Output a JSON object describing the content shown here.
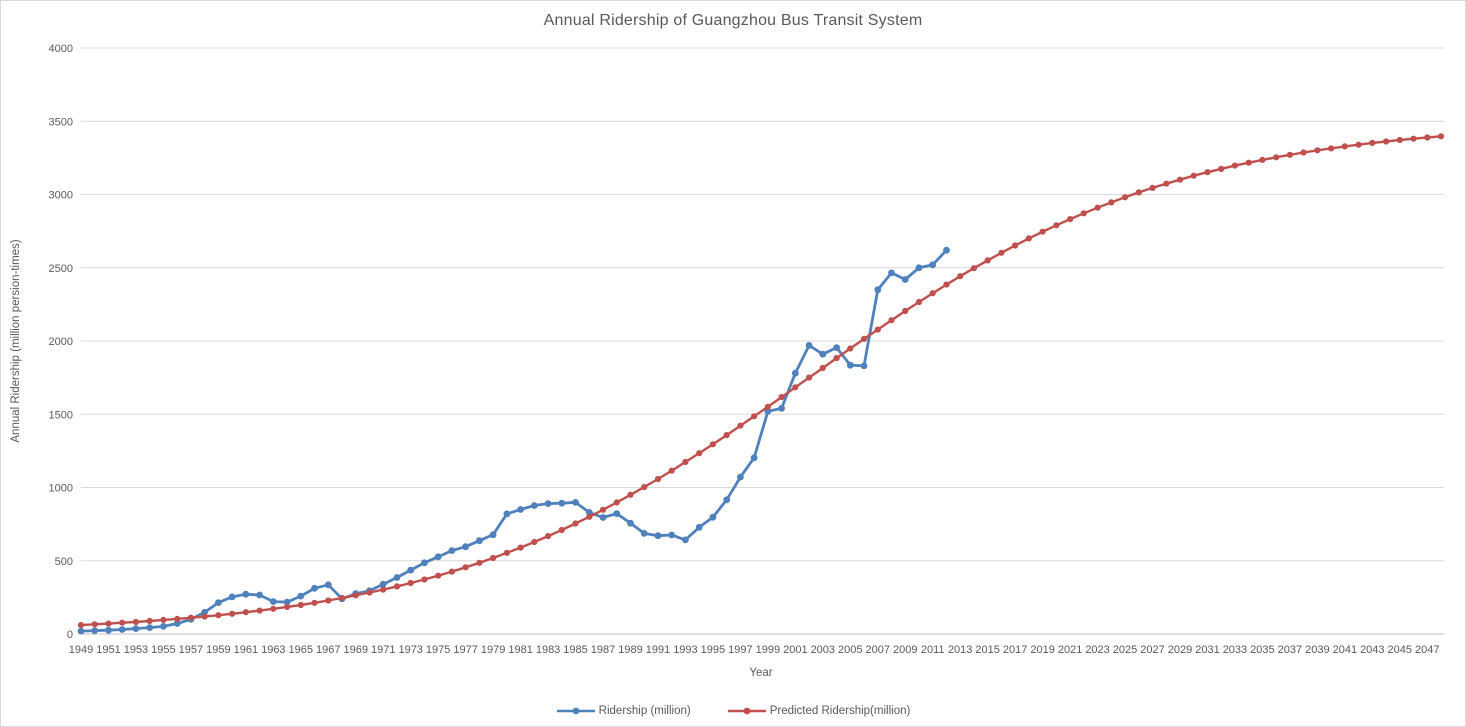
{
  "chart_data": {
    "type": "line",
    "title": "Annual Ridership of Guangzhou Bus Transit System",
    "xlabel": "Year",
    "ylabel": "Annual Ridership (million persion-times)",
    "ylim": [
      0,
      4000
    ],
    "y_ticks": [
      0,
      500,
      1000,
      1500,
      2000,
      2500,
      3000,
      3500,
      4000
    ],
    "x_axis_start": 1949,
    "x_axis_end": 2048,
    "x_tick_labels": [
      1949,
      1951,
      1953,
      1955,
      1957,
      1959,
      1961,
      1963,
      1965,
      1967,
      1969,
      1971,
      1973,
      1975,
      1977,
      1979,
      1981,
      1983,
      1985,
      1987,
      1989,
      1991,
      1993,
      1995,
      1997,
      1999,
      2001,
      2003,
      2005,
      2007,
      2009,
      2011,
      2013,
      2015,
      2017,
      2019,
      2021,
      2023,
      2025,
      2027,
      2029,
      2031,
      2033,
      2035,
      2037,
      2039,
      2041,
      2043,
      2045,
      2047
    ],
    "grid": "horizontal",
    "legend_position": "bottom",
    "grid_color": "#d9d9d9",
    "axis_color": "#bfbfbf",
    "text_color": "#595959",
    "series": [
      {
        "name": "Ridership (million)",
        "color": "#4F81BD",
        "start_year": 1949,
        "end_year": 2012,
        "values": [
          20,
          23,
          26,
          31,
          37,
          44,
          52,
          72,
          100,
          148,
          214,
          253,
          272,
          266,
          221,
          218,
          259,
          312,
          336,
          240,
          275,
          295,
          340,
          386,
          436,
          486,
          527,
          569,
          596,
          637,
          678,
          820,
          850,
          877,
          890,
          893,
          898,
          830,
          795,
          822,
          756,
          687,
          671,
          676,
          642,
          728,
          797,
          916,
          1071,
          1203,
          1520,
          1540,
          1780,
          1970,
          1910,
          1955,
          1835,
          1830,
          2350,
          2465,
          2420,
          2500,
          2520,
          2620
        ]
      },
      {
        "name": "Predicted Ridership(million)",
        "color": "#C0504D",
        "start_year": 1949,
        "end_year": 2048,
        "values": [
          61,
          66,
          71,
          77,
          82,
          89,
          96,
          103,
          111,
          119,
          128,
          138,
          149,
          160,
          172,
          185,
          198,
          213,
          229,
          246,
          264,
          283,
          303,
          325,
          348,
          372,
          398,
          426,
          455,
          486,
          519,
          554,
          590,
          628,
          668,
          710,
          754,
          800,
          848,
          898,
          950,
          1003,
          1058,
          1115,
          1174,
          1234,
          1295,
          1358,
          1422,
          1486,
          1551,
          1617,
          1684,
          1750,
          1816,
          1883,
          1949,
          2014,
          2078,
          2142,
          2205,
          2266,
          2326,
          2385,
          2442,
          2497,
          2550,
          2602,
          2652,
          2700,
          2746,
          2790,
          2832,
          2872,
          2910,
          2946,
          2981,
          3014,
          3045,
          3074,
          3101,
          3128,
          3152,
          3175,
          3197,
          3217,
          3236,
          3254,
          3271,
          3287,
          3302,
          3315,
          3328,
          3340,
          3352,
          3362,
          3372,
          3381,
          3389,
          3397
        ]
      }
    ]
  }
}
